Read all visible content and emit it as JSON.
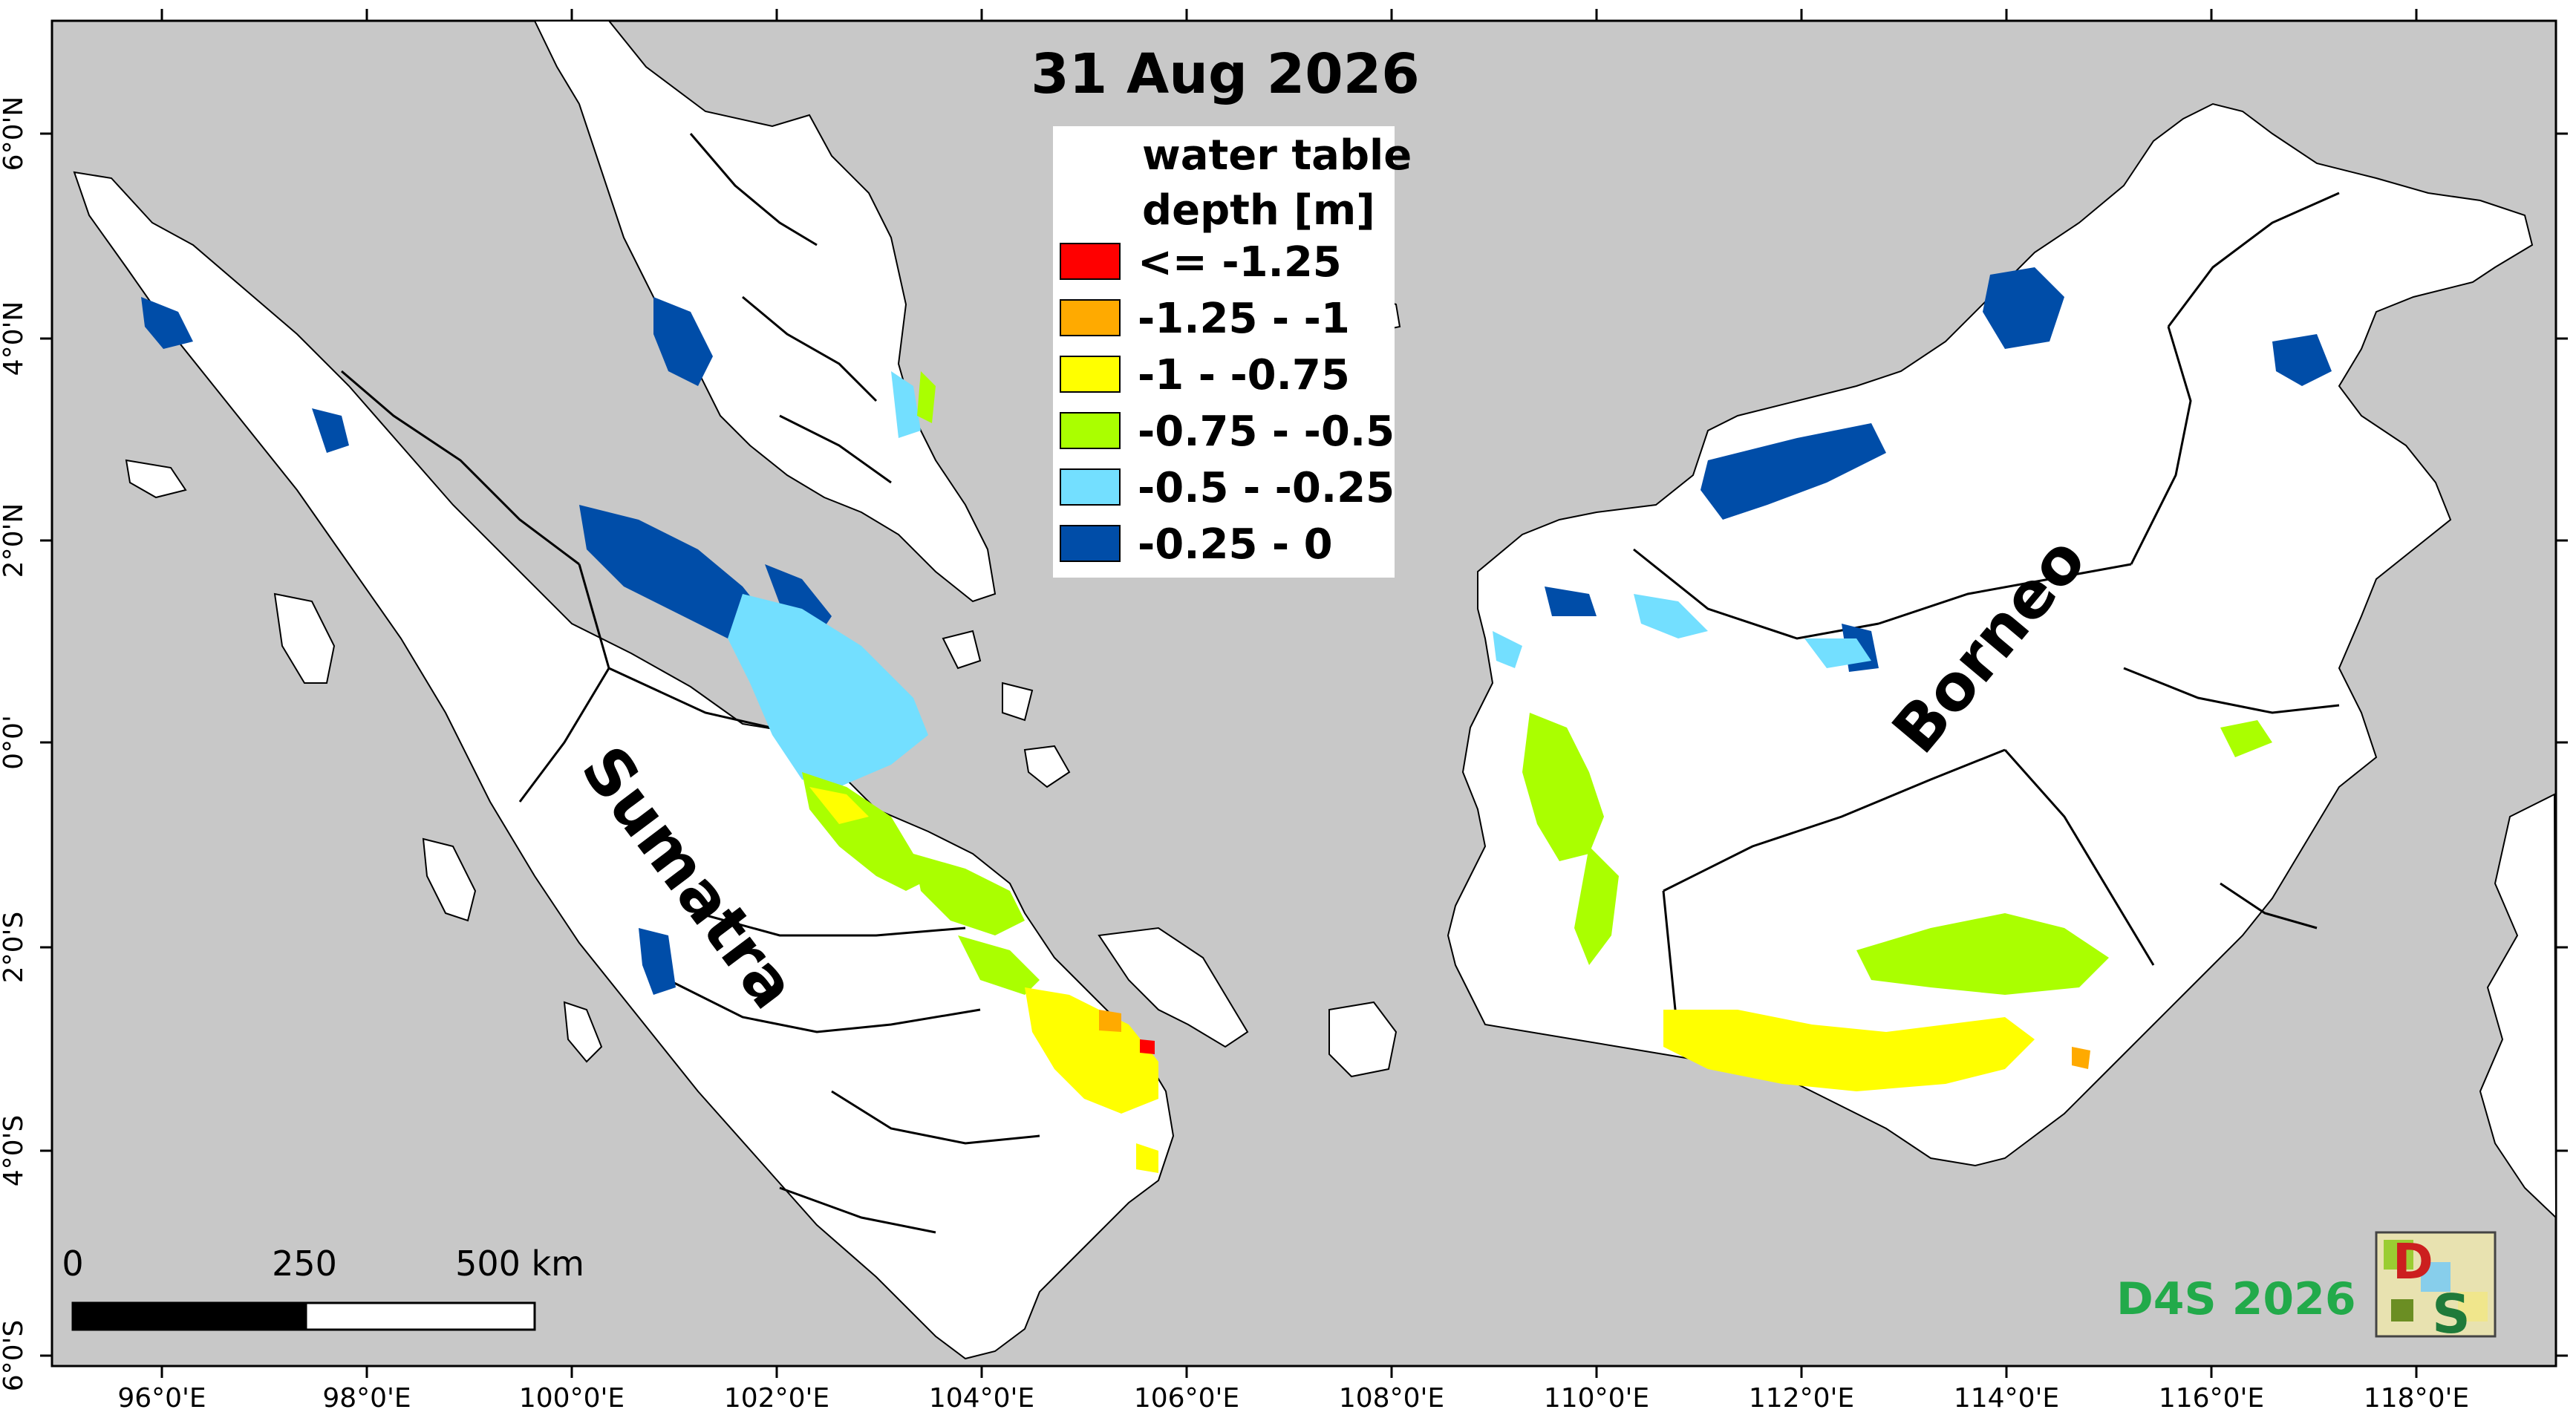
{
  "title": "31 Aug 2026",
  "colors": {
    "sea": "#c8c8c8",
    "land": "#ffffff",
    "border": "#000000"
  },
  "legend": {
    "title_line1": "water table",
    "title_line2": "depth [m]",
    "placement": "top-center",
    "classes": [
      {
        "label": "<= -1.25",
        "color": "#ff0000"
      },
      {
        "label": "-1.25 - -1",
        "color": "#ffaa00"
      },
      {
        "label": "-1 - -0.75",
        "color": "#ffff00"
      },
      {
        "label": "-0.75 - -0.5",
        "color": "#aaff00"
      },
      {
        "label": "-0.5 - -0.25",
        "color": "#73dfff"
      },
      {
        "label": "-0.25 - 0",
        "color": "#004da8"
      }
    ]
  },
  "axes": {
    "longitude_ticks": [
      "96°0'E",
      "98°0'E",
      "100°0'E",
      "102°0'E",
      "104°0'E",
      "106°0'E",
      "108°0'E",
      "110°0'E",
      "112°0'E",
      "114°0'E",
      "116°0'E",
      "118°0'E"
    ],
    "latitude_ticks": [
      "6°0'N",
      "4°0'N",
      "2°0'N",
      "0°0'",
      "2°0'S",
      "4°0'S",
      "6°0'S"
    ]
  },
  "labels": {
    "sumatra": "Sumatra",
    "borneo": "Borneo"
  },
  "scale_bar": {
    "labels": [
      "0",
      "250",
      "500 km"
    ]
  },
  "credit": {
    "text": "D4S 2026",
    "logo_text_top": "D",
    "logo_text_bottom": "S",
    "logo_icon": "d4s-logo-icon"
  }
}
